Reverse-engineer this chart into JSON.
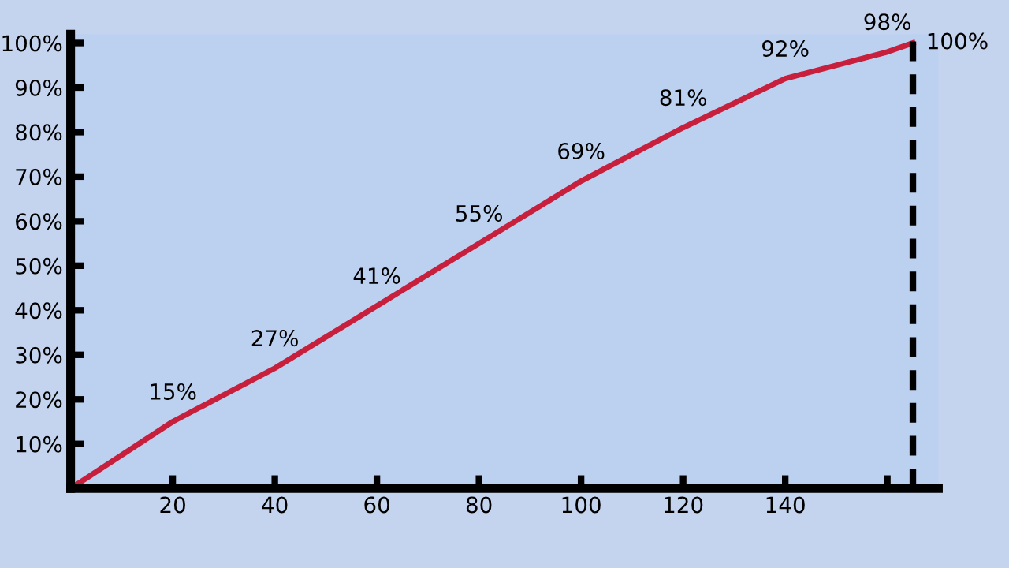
{
  "chart_data": {
    "type": "line",
    "x": [
      0,
      20,
      40,
      60,
      80,
      100,
      120,
      140,
      160,
      165
    ],
    "series": [
      {
        "color": "#c8203c",
        "values": [
          0,
          15,
          27,
          41,
          55,
          69,
          81,
          92,
          98,
          100
        ],
        "value_labels": [
          null,
          "15%",
          "27%",
          "41%",
          "55%",
          "69%",
          "81%",
          "92%",
          "98%",
          "100%"
        ]
      }
    ],
    "xlim": [
      0,
      170
    ],
    "ylim": [
      0,
      102
    ],
    "xticks": [
      20,
      40,
      60,
      80,
      100,
      120,
      140,
      {
        "value": 160,
        "label": null
      }
    ],
    "yticks": [
      {
        "value": 10,
        "label": "10%"
      },
      {
        "value": 20,
        "label": "20%"
      },
      {
        "value": 30,
        "label": "30%"
      },
      {
        "value": 40,
        "label": "40%"
      },
      {
        "value": 50,
        "label": "50%"
      },
      {
        "value": 60,
        "label": "60%"
      },
      {
        "value": 70,
        "label": "70%"
      },
      {
        "value": 80,
        "label": "80%"
      },
      {
        "value": 90,
        "label": "90%"
      },
      {
        "value": 100,
        "label": "100%"
      }
    ],
    "ref_lines": [
      {
        "axis": "x",
        "value": 165,
        "color": "#000000",
        "line_style": "dashed"
      }
    ],
    "grid": false,
    "legend": false,
    "marker": "none",
    "line_style": "solid"
  }
}
